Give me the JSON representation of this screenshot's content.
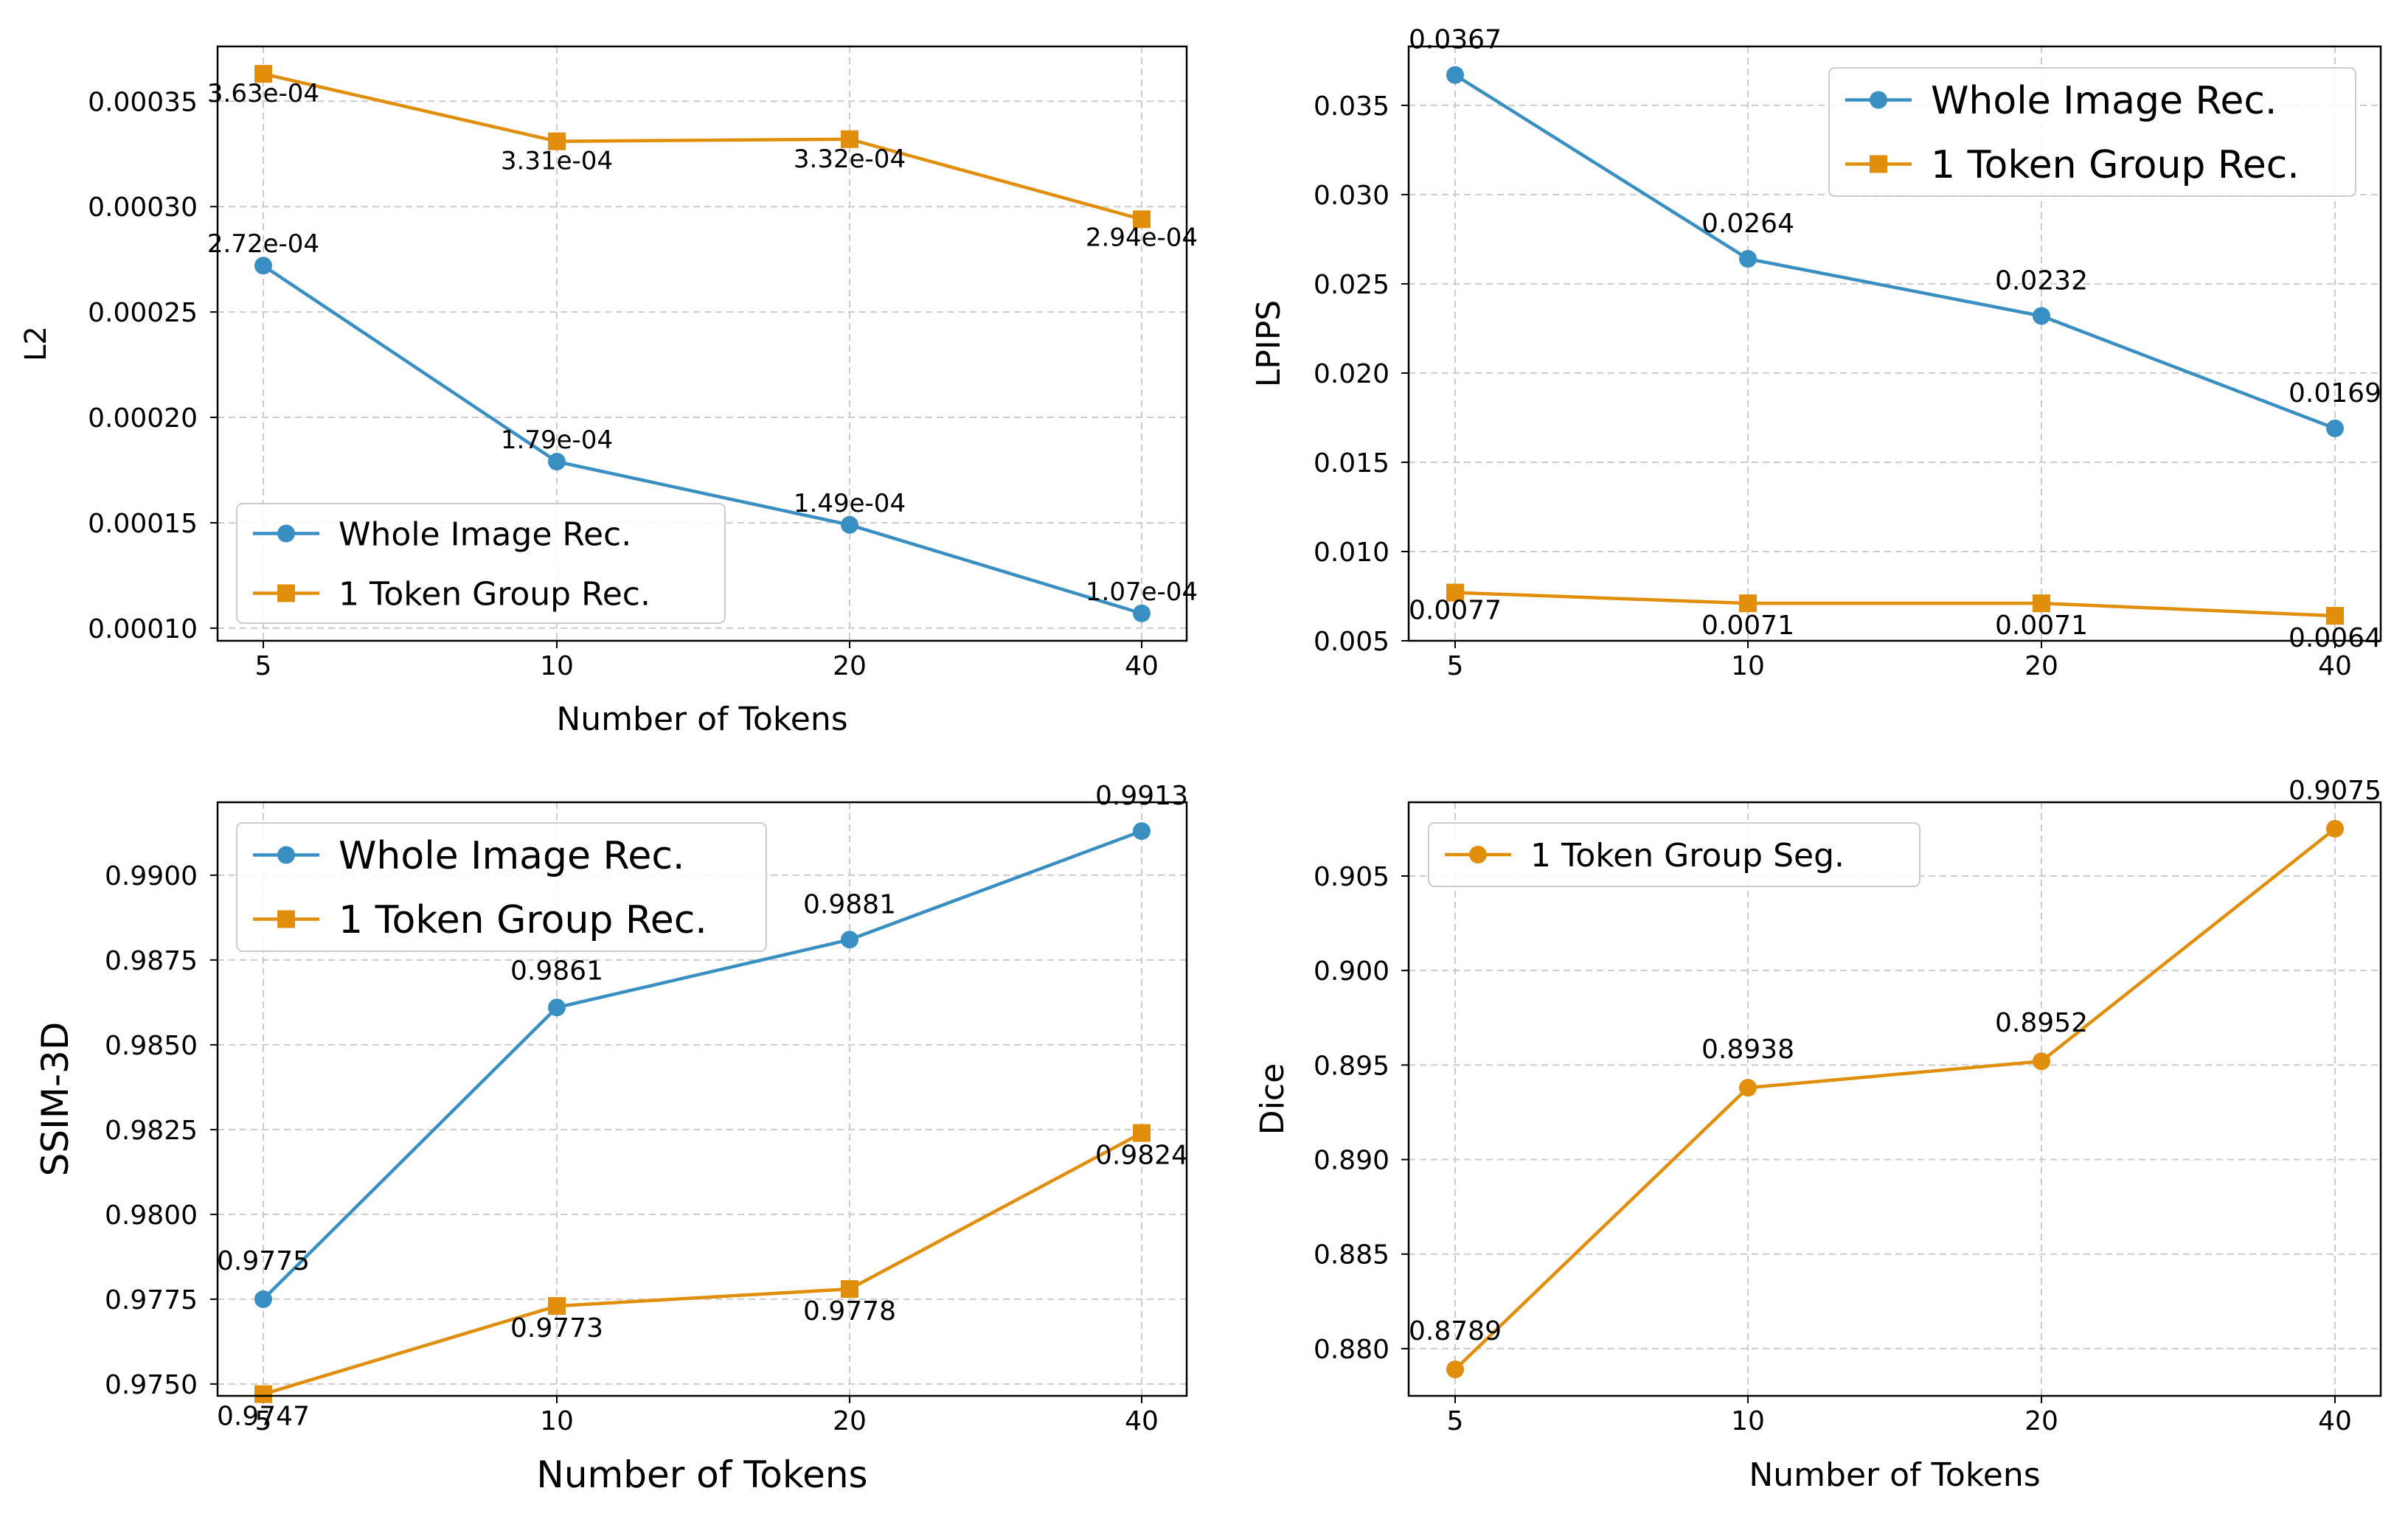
{
  "chart_data": [
    {
      "type": "line",
      "title": "",
      "xlabel": "Number of Tokens",
      "ylabel": "L2",
      "categories": [
        "5",
        "10",
        "20",
        "40"
      ],
      "ylim": [
        9.4e-05,
        0.000376
      ],
      "yticks": [
        0.0001,
        0.00015,
        0.0002,
        0.00025,
        0.0003,
        0.00035
      ],
      "ytick_labels": [
        "0.00010",
        "0.00015",
        "0.00020",
        "0.00025",
        "0.00030",
        "0.00035"
      ],
      "grid": true,
      "legend_position": "lower-left",
      "series": [
        {
          "name": "Whole Image Rec.",
          "color": "#3a8fc2",
          "marker": "circle",
          "values": [
            0.000272,
            0.000179,
            0.000149,
            0.000107
          ],
          "labels": [
            "2.72e-04",
            "1.79e-04",
            "1.49e-04",
            "1.07e-04"
          ]
        },
        {
          "name": "1 Token Group Rec.",
          "color": "#e08e0b",
          "marker": "square",
          "values": [
            0.000363,
            0.000331,
            0.000332,
            0.000294
          ],
          "labels": [
            "3.63e-04",
            "3.31e-04",
            "3.32e-04",
            "2.94e-04"
          ]
        }
      ]
    },
    {
      "type": "line",
      "title": "",
      "xlabel": "",
      "ylabel": "LPIPS",
      "categories": [
        "5",
        "10",
        "20",
        "40"
      ],
      "ylim": [
        0.005,
        0.0383
      ],
      "yticks": [
        0.005,
        0.01,
        0.015,
        0.02,
        0.025,
        0.03,
        0.035
      ],
      "ytick_labels": [
        "0.005",
        "0.010",
        "0.015",
        "0.020",
        "0.025",
        "0.030",
        "0.035"
      ],
      "grid": true,
      "legend_position": "upper-right",
      "series": [
        {
          "name": "Whole Image Rec.",
          "color": "#3a8fc2",
          "marker": "circle",
          "values": [
            0.0367,
            0.0264,
            0.0232,
            0.0169
          ],
          "labels": [
            "0.0367",
            "0.0264",
            "0.0232",
            "0.0169"
          ]
        },
        {
          "name": "1 Token Group Rec.",
          "color": "#e08e0b",
          "marker": "square",
          "values": [
            0.0077,
            0.0071,
            0.0071,
            0.0064
          ],
          "labels": [
            "0.0077",
            "0.0071",
            "0.0071",
            "0.0064"
          ]
        }
      ]
    },
    {
      "type": "line",
      "title": "",
      "xlabel": "Number of Tokens",
      "ylabel": "SSIM-3D",
      "categories": [
        "5",
        "10",
        "20",
        "40"
      ],
      "ylim": [
        0.97465,
        0.99215
      ],
      "yticks": [
        0.975,
        0.9775,
        0.98,
        0.9825,
        0.985,
        0.9875,
        0.99
      ],
      "ytick_labels": [
        "0.9750",
        "0.9775",
        "0.9800",
        "0.9825",
        "0.9850",
        "0.9875",
        "0.9900"
      ],
      "grid": true,
      "legend_position": "upper-left",
      "series": [
        {
          "name": "Whole Image Rec.",
          "color": "#3a8fc2",
          "marker": "circle",
          "values": [
            0.9775,
            0.9861,
            0.9881,
            0.9913
          ],
          "labels": [
            "0.9775",
            "0.9861",
            "0.9881",
            "0.9913"
          ]
        },
        {
          "name": "1 Token Group Rec.",
          "color": "#e08e0b",
          "marker": "square",
          "values": [
            0.9747,
            0.9773,
            0.9778,
            0.9824
          ],
          "labels": [
            "0.9747",
            "0.9773",
            "0.9778",
            "0.9824"
          ]
        }
      ]
    },
    {
      "type": "line",
      "title": "",
      "xlabel": "Number of Tokens",
      "ylabel": "Dice",
      "categories": [
        "5",
        "10",
        "20",
        "40"
      ],
      "ylim": [
        0.8775,
        0.9089
      ],
      "yticks": [
        0.88,
        0.885,
        0.89,
        0.895,
        0.9,
        0.905
      ],
      "ytick_labels": [
        "0.880",
        "0.885",
        "0.890",
        "0.895",
        "0.900",
        "0.905"
      ],
      "grid": true,
      "legend_position": "upper-left",
      "series": [
        {
          "name": "1 Token Group Seg.",
          "color": "#e08e0b",
          "marker": "circle",
          "values": [
            0.8789,
            0.8938,
            0.8952,
            0.9075
          ],
          "labels": [
            "0.8789",
            "0.8938",
            "0.8952",
            "0.9075"
          ]
        }
      ]
    }
  ]
}
